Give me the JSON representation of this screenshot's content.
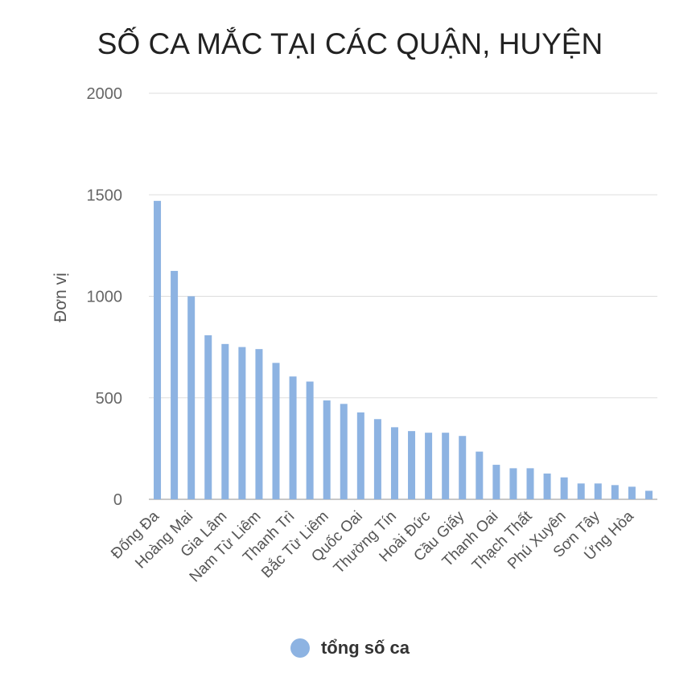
{
  "chart_data": {
    "type": "bar",
    "title": "SỐ CA MẮC TẠI CÁC QUẬN, HUYỆN",
    "xlabel": "",
    "ylabel": "Đơn vị",
    "ylim": [
      0,
      2000
    ],
    "yticks": [
      0,
      500,
      1000,
      1500,
      2000
    ],
    "grid": true,
    "legend_position": "bottom",
    "bar_color": "#8db3e2",
    "categories": [
      "Đống Đa",
      "",
      "Hoàng Mai",
      "",
      "Gia Lâm",
      "",
      "Nam Từ Liêm",
      "",
      "Thanh Trì",
      "",
      "Bắc Từ Liêm",
      "",
      "Quốc Oai",
      "",
      "Thường Tín",
      "",
      "Hoài Đức",
      "",
      "Cầu Giấy",
      "",
      "Thanh Oai",
      "",
      "Thạch Thất",
      "",
      "Phú Xuyên",
      "",
      "Sơn Tây",
      "",
      "Ứng Hòa",
      ""
    ],
    "series": [
      {
        "name": "tổng số ca",
        "values": [
          1470,
          1125,
          1000,
          808,
          765,
          750,
          740,
          672,
          605,
          580,
          487,
          470,
          428,
          395,
          355,
          336,
          328,
          328,
          312,
          235,
          170,
          153,
          153,
          127,
          108,
          78,
          78,
          70,
          62,
          42
        ]
      }
    ]
  }
}
